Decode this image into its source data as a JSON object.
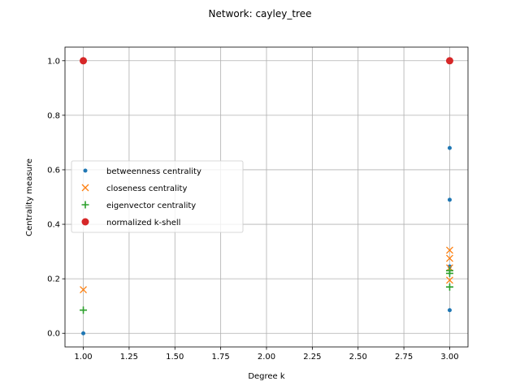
{
  "chart_data": {
    "type": "scatter",
    "title": "Network: cayley_tree",
    "xlabel": "Degree k",
    "ylabel": "Centrality measure",
    "xlim": [
      0.9,
      3.1
    ],
    "ylim": [
      -0.05,
      1.05
    ],
    "xticks": [
      "1.00",
      "1.25",
      "1.50",
      "1.75",
      "2.00",
      "2.25",
      "2.50",
      "2.75",
      "3.00"
    ],
    "yticks": [
      "0.0",
      "0.2",
      "0.4",
      "0.6",
      "0.8",
      "1.0"
    ],
    "grid": true,
    "legend_position": "center-left",
    "series": [
      {
        "name": "betweenness centrality",
        "marker": "dot",
        "color": "#1f77b4",
        "points": [
          [
            1,
            0.0
          ],
          [
            3,
            0.68
          ],
          [
            3,
            0.49
          ],
          [
            3,
            0.245
          ],
          [
            3,
            0.085
          ]
        ]
      },
      {
        "name": "closeness centrality",
        "marker": "x",
        "color": "#ff7f0e",
        "points": [
          [
            1,
            0.16
          ],
          [
            3,
            0.305
          ],
          [
            3,
            0.275
          ],
          [
            3,
            0.24
          ],
          [
            3,
            0.195
          ]
        ]
      },
      {
        "name": "eigenvector centrality",
        "marker": "plus",
        "color": "#2ca02c",
        "points": [
          [
            1,
            0.085
          ],
          [
            3,
            0.23
          ],
          [
            3,
            0.22
          ],
          [
            3,
            0.17
          ]
        ]
      },
      {
        "name": "normalized k-shell",
        "marker": "circle",
        "color": "#d62728",
        "points": [
          [
            1,
            1.0
          ],
          [
            3,
            1.0
          ]
        ]
      }
    ]
  }
}
